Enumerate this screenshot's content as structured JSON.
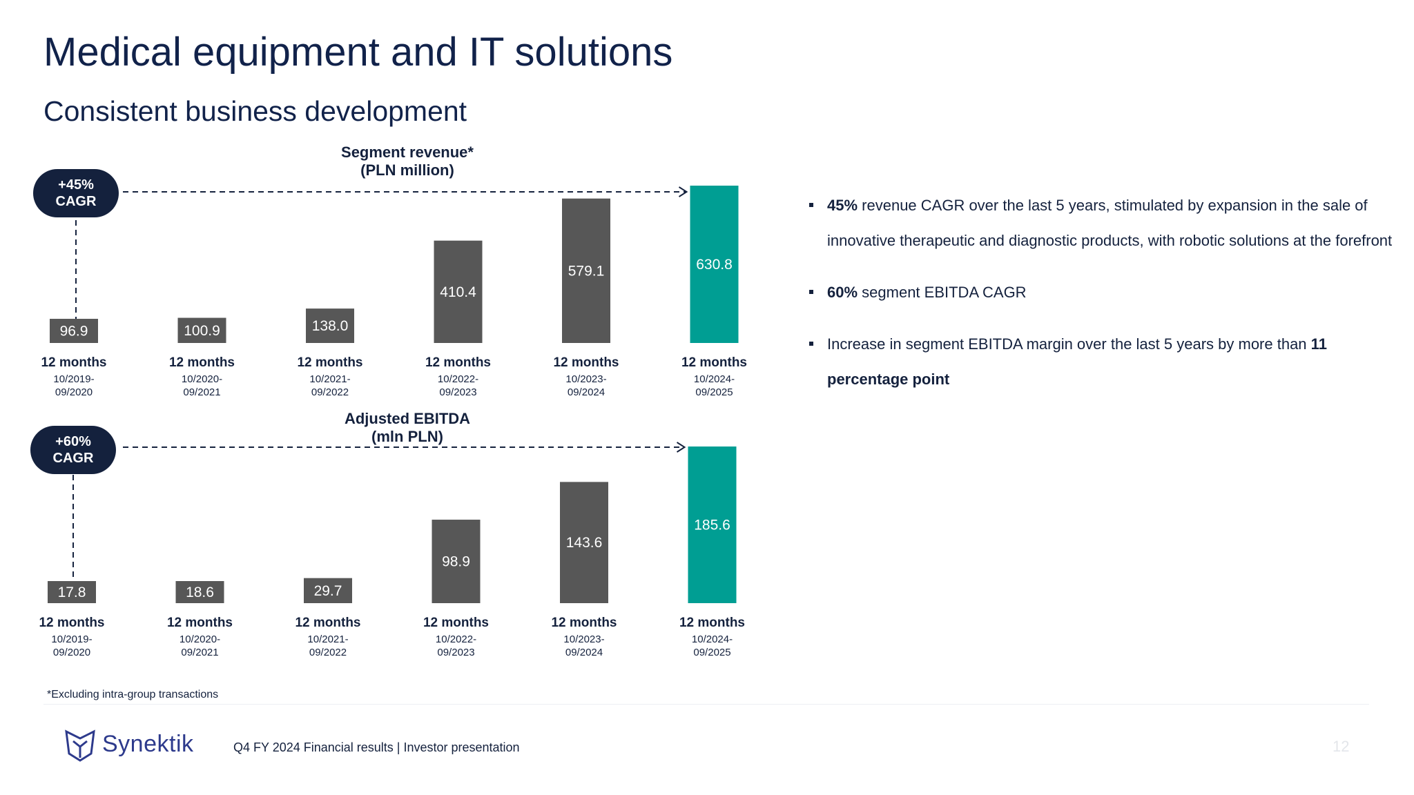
{
  "title": "Medical equipment and IT solutions",
  "subtitle": "Consistent business development",
  "colors": {
    "bar_default": "#575757",
    "bar_highlight": "#009e93",
    "dark": "#14213d"
  },
  "chart_data": [
    {
      "type": "bar",
      "title_line1": "Segment revenue*",
      "title_line2": "(PLN million)",
      "cagr_line1": "+45%",
      "cagr_line2": "CAGR",
      "categories": [
        {
          "top": "12 months",
          "line1": "10/2019-",
          "line2": "09/2020"
        },
        {
          "top": "12 months",
          "line1": "10/2020-",
          "line2": "09/2021"
        },
        {
          "top": "12 months",
          "line1": "10/2021-",
          "line2": "09/2022"
        },
        {
          "top": "12 months",
          "line1": "10/2022-",
          "line2": "09/2023"
        },
        {
          "top": "12 months",
          "line1": "10/2023-",
          "line2": "09/2024"
        },
        {
          "top": "12 months",
          "line1": "10/2024-",
          "line2": "09/2025"
        }
      ],
      "values": [
        96.9,
        100.9,
        138.0,
        410.4,
        579.1,
        630.8
      ],
      "labels": [
        "96.9",
        "100.9",
        "138.0",
        "410.4",
        "579.1",
        "630.8"
      ],
      "highlight_index": 5,
      "ylim": [
        0,
        650
      ]
    },
    {
      "type": "bar",
      "title_line1": "Adjusted EBITDA",
      "title_line2": "(mln PLN)",
      "cagr_line1": "+60%",
      "cagr_line2": "CAGR",
      "categories": [
        {
          "top": "12 months",
          "line1": "10/2019-",
          "line2": "09/2020"
        },
        {
          "top": "12 months",
          "line1": "10/2020-",
          "line2": "09/2021"
        },
        {
          "top": "12 months",
          "line1": "10/2021-",
          "line2": "09/2022"
        },
        {
          "top": "12 months",
          "line1": "10/2022-",
          "line2": "09/2023"
        },
        {
          "top": "12 months",
          "line1": "10/2023-",
          "line2": "09/2024"
        },
        {
          "top": "12 months",
          "line1": "10/2024-",
          "line2": "09/2025"
        }
      ],
      "values": [
        17.8,
        18.6,
        29.7,
        98.9,
        143.6,
        185.6
      ],
      "labels": [
        "17.8",
        "18.6",
        "29.7",
        "98.9",
        "143.6",
        "185.6"
      ],
      "highlight_index": 5,
      "ylim": [
        0,
        190
      ]
    }
  ],
  "bullets": [
    {
      "bold": "45%",
      "text": " revenue CAGR over the last 5 years, stimulated by expansion in the sale of innovative therapeutic and diagnostic products, with robotic solutions at the forefront"
    },
    {
      "bold": "60%",
      "text": " segment EBITDA CAGR"
    },
    {
      "bold": "",
      "text": "Increase in segment EBITDA margin over the last 5 years by more than ",
      "bold_after": "11 percentage point"
    }
  ],
  "footnote": "*Excluding intra-group transactions",
  "footer": {
    "logo_text": "Synektik",
    "caption": "Q4 FY 2024 Financial results |  Investor presentation",
    "page": "12"
  }
}
